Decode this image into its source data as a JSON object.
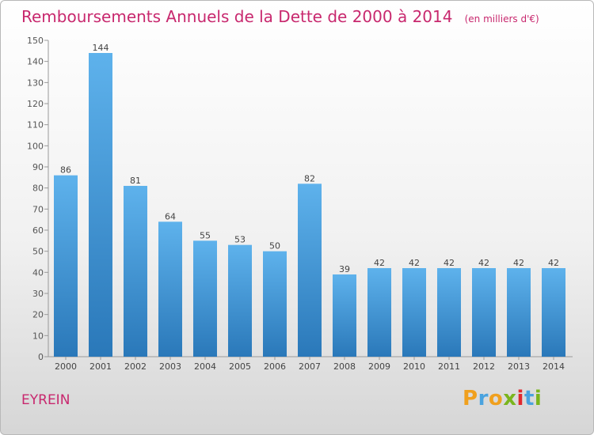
{
  "title": "Remboursements Annuels de la Dette de 2000 à 2014",
  "unit_label": "(en milliers d'€)",
  "commune": "EYREIN",
  "logo": {
    "text": "Proxiti",
    "letters": [
      "P",
      "r",
      "o",
      "x",
      "i",
      "t",
      "i"
    ],
    "colors": [
      "#f0a01e",
      "#4aa3df",
      "#f0a01e",
      "#7ab51d",
      "#e0282e",
      "#4aa3df",
      "#7ab51d"
    ]
  },
  "colors": {
    "title": "#c8286e",
    "bar_top": "#5eb2ec",
    "bar_bottom": "#2a78b9"
  },
  "chart_data": {
    "type": "bar",
    "categories": [
      "2000",
      "2001",
      "2002",
      "2003",
      "2004",
      "2005",
      "2006",
      "2007",
      "2008",
      "2009",
      "2010",
      "2011",
      "2012",
      "2013",
      "2014"
    ],
    "values": [
      86,
      144,
      81,
      64,
      55,
      53,
      50,
      82,
      39,
      42,
      42,
      42,
      42,
      42,
      42
    ],
    "ylim": [
      0,
      150
    ],
    "yticks": [
      0,
      10,
      20,
      30,
      40,
      50,
      60,
      70,
      80,
      90,
      100,
      110,
      120,
      130,
      140,
      150
    ],
    "grid": false,
    "data_labels": true
  }
}
